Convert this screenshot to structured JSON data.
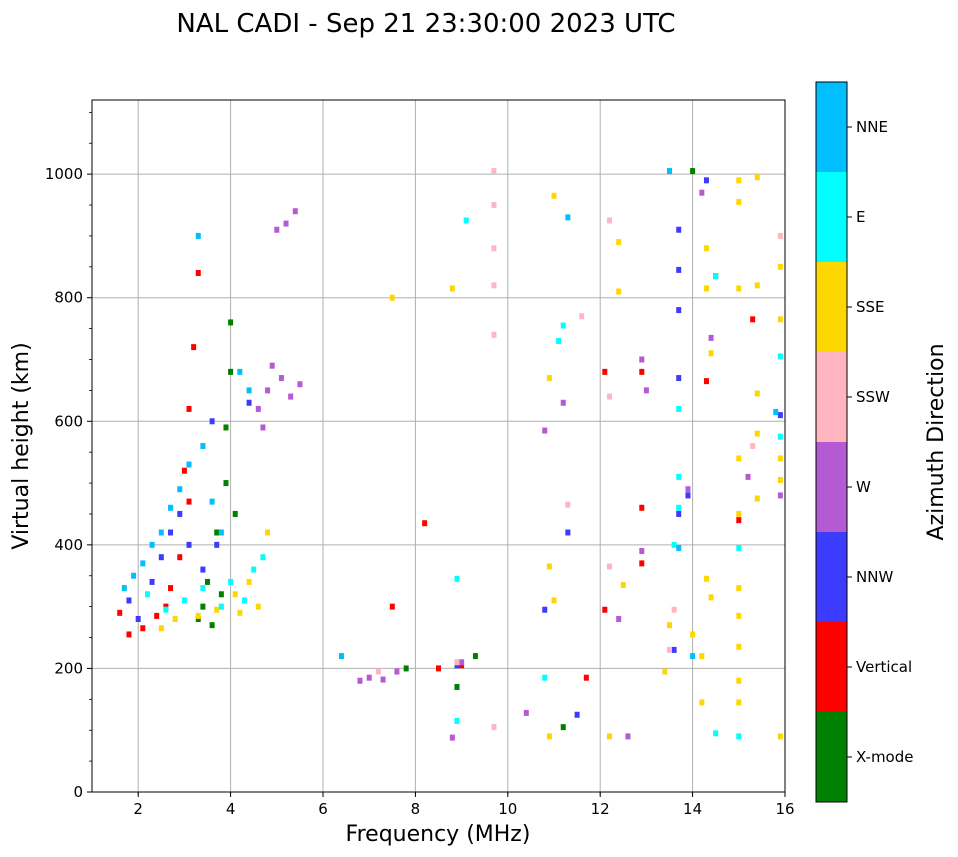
{
  "chart_data": {
    "type": "scatter",
    "title": "NAL CADI - Sep 21 23:30:00 2023 UTC",
    "xlabel": "Frequency (MHz)",
    "ylabel": "Virtual height (km)",
    "xlim": [
      1,
      16
    ],
    "ylim": [
      0,
      1120
    ],
    "xticks": [
      2,
      4,
      6,
      8,
      10,
      12,
      14,
      16
    ],
    "yticks": [
      0,
      200,
      400,
      600,
      800,
      1000
    ],
    "grid": true,
    "colorbar": {
      "title": "Azimuth Direction",
      "categories": [
        {
          "name": "X-mode",
          "color": "#008000"
        },
        {
          "name": "Vertical",
          "color": "#ff0000"
        },
        {
          "name": "NNW",
          "color": "#3c3cff"
        },
        {
          "name": "W",
          "color": "#b45ad2"
        },
        {
          "name": "SSW",
          "color": "#ffb6c1"
        },
        {
          "name": "SSE",
          "color": "#ffd700"
        },
        {
          "name": "E",
          "color": "#00ffff"
        },
        {
          "name": "NNE",
          "color": "#00bfff"
        }
      ]
    },
    "series": [
      {
        "name": "X-mode",
        "points": [
          [
            3.3,
            280
          ],
          [
            3.5,
            340
          ],
          [
            3.7,
            420
          ],
          [
            3.9,
            500
          ],
          [
            4.0,
            680
          ],
          [
            4.0,
            760
          ],
          [
            3.8,
            320
          ],
          [
            3.6,
            270
          ],
          [
            3.4,
            300
          ],
          [
            3.9,
            590
          ],
          [
            4.1,
            450
          ],
          [
            8.9,
            170
          ],
          [
            9.3,
            220
          ],
          [
            7.8,
            200
          ],
          [
            11.2,
            105
          ],
          [
            14.0,
            1005
          ],
          [
            14.5,
            835
          ]
        ]
      },
      {
        "name": "Vertical",
        "points": [
          [
            1.6,
            290
          ],
          [
            1.8,
            255
          ],
          [
            2.1,
            265
          ],
          [
            2.4,
            285
          ],
          [
            2.6,
            300
          ],
          [
            2.9,
            380
          ],
          [
            3.0,
            520
          ],
          [
            3.1,
            620
          ],
          [
            3.2,
            720
          ],
          [
            3.3,
            840
          ],
          [
            3.1,
            470
          ],
          [
            2.7,
            330
          ],
          [
            8.5,
            200
          ],
          [
            9.0,
            205
          ],
          [
            7.5,
            300
          ],
          [
            12.9,
            680
          ],
          [
            12.9,
            460
          ],
          [
            12.9,
            370
          ],
          [
            15.0,
            440
          ],
          [
            15.3,
            765
          ],
          [
            12.1,
            680
          ],
          [
            11.7,
            185
          ],
          [
            8.2,
            435
          ],
          [
            12.1,
            295
          ],
          [
            14.3,
            665
          ]
        ]
      },
      {
        "name": "NNW",
        "points": [
          [
            1.8,
            310
          ],
          [
            2.0,
            280
          ],
          [
            2.3,
            340
          ],
          [
            2.5,
            380
          ],
          [
            2.7,
            420
          ],
          [
            2.9,
            450
          ],
          [
            3.1,
            400
          ],
          [
            3.4,
            360
          ],
          [
            3.7,
            400
          ],
          [
            4.4,
            630
          ],
          [
            3.6,
            600
          ],
          [
            8.9,
            205
          ],
          [
            11.3,
            420
          ],
          [
            11.5,
            125
          ],
          [
            13.7,
            910
          ],
          [
            13.7,
            845
          ],
          [
            13.7,
            780
          ],
          [
            13.7,
            670
          ],
          [
            13.7,
            450
          ],
          [
            13.6,
            230
          ],
          [
            15.9,
            610
          ],
          [
            10.8,
            295
          ],
          [
            13.9,
            480
          ],
          [
            14.3,
            990
          ]
        ]
      },
      {
        "name": "W",
        "points": [
          [
            5.2,
            920
          ],
          [
            5.4,
            940
          ],
          [
            5.0,
            910
          ],
          [
            4.8,
            650
          ],
          [
            5.1,
            670
          ],
          [
            5.3,
            640
          ],
          [
            4.6,
            620
          ],
          [
            4.9,
            690
          ],
          [
            5.5,
            660
          ],
          [
            4.7,
            590
          ],
          [
            7.0,
            185
          ],
          [
            7.3,
            182
          ],
          [
            7.6,
            195
          ],
          [
            6.8,
            180
          ],
          [
            9.0,
            210
          ],
          [
            10.8,
            585
          ],
          [
            11.2,
            630
          ],
          [
            12.9,
            700
          ],
          [
            12.9,
            390
          ],
          [
            12.4,
            280
          ],
          [
            13.9,
            490
          ],
          [
            14.4,
            735
          ],
          [
            15.2,
            510
          ],
          [
            15.9,
            480
          ],
          [
            12.6,
            90
          ],
          [
            10.4,
            128
          ],
          [
            8.8,
            88
          ],
          [
            14.2,
            970
          ],
          [
            13.0,
            650
          ]
        ]
      },
      {
        "name": "SSW",
        "points": [
          [
            9.7,
            1005
          ],
          [
            9.7,
            950
          ],
          [
            9.7,
            880
          ],
          [
            9.7,
            820
          ],
          [
            9.7,
            740
          ],
          [
            9.7,
            105
          ],
          [
            12.2,
            925
          ],
          [
            12.2,
            640
          ],
          [
            12.2,
            365
          ],
          [
            11.3,
            465
          ],
          [
            13.6,
            295
          ],
          [
            15.3,
            560
          ],
          [
            15.9,
            900
          ],
          [
            8.9,
            210
          ],
          [
            7.2,
            195
          ],
          [
            11.6,
            770
          ],
          [
            13.5,
            230
          ]
        ]
      },
      {
        "name": "SSE",
        "points": [
          [
            2.5,
            265
          ],
          [
            2.8,
            280
          ],
          [
            3.3,
            285
          ],
          [
            3.7,
            295
          ],
          [
            4.1,
            320
          ],
          [
            4.4,
            340
          ],
          [
            4.6,
            300
          ],
          [
            4.8,
            420
          ],
          [
            4.2,
            290
          ],
          [
            7.5,
            800
          ],
          [
            8.8,
            815
          ],
          [
            10.9,
            670
          ],
          [
            11.0,
            965
          ],
          [
            11.0,
            310
          ],
          [
            10.9,
            365
          ],
          [
            12.4,
            890
          ],
          [
            12.4,
            810
          ],
          [
            12.5,
            335
          ],
          [
            12.2,
            90
          ],
          [
            13.5,
            270
          ],
          [
            13.4,
            195
          ],
          [
            14.3,
            880
          ],
          [
            14.3,
            815
          ],
          [
            14.4,
            710
          ],
          [
            14.3,
            345
          ],
          [
            14.4,
            315
          ],
          [
            15.0,
            990
          ],
          [
            15.0,
            955
          ],
          [
            15.0,
            815
          ],
          [
            15.0,
            540
          ],
          [
            15.0,
            450
          ],
          [
            15.0,
            330
          ],
          [
            15.0,
            285
          ],
          [
            15.0,
            235
          ],
          [
            15.0,
            180
          ],
          [
            15.0,
            145
          ],
          [
            15.4,
            995
          ],
          [
            15.4,
            820
          ],
          [
            15.4,
            645
          ],
          [
            15.4,
            580
          ],
          [
            15.4,
            475
          ],
          [
            15.9,
            850
          ],
          [
            15.9,
            765
          ],
          [
            15.9,
            540
          ],
          [
            15.9,
            505
          ],
          [
            15.9,
            90
          ],
          [
            14.0,
            255
          ],
          [
            14.2,
            220
          ],
          [
            14.2,
            145
          ],
          [
            10.9,
            90
          ]
        ]
      },
      {
        "name": "E",
        "points": [
          [
            2.2,
            320
          ],
          [
            2.6,
            295
          ],
          [
            3.0,
            310
          ],
          [
            3.4,
            330
          ],
          [
            3.8,
            300
          ],
          [
            4.0,
            340
          ],
          [
            4.5,
            360
          ],
          [
            4.7,
            380
          ],
          [
            4.3,
            310
          ],
          [
            8.9,
            345
          ],
          [
            9.1,
            925
          ],
          [
            11.2,
            755
          ],
          [
            11.1,
            730
          ],
          [
            10.8,
            185
          ],
          [
            13.7,
            510
          ],
          [
            13.7,
            460
          ],
          [
            13.6,
            400
          ],
          [
            13.7,
            620
          ],
          [
            15.0,
            395
          ],
          [
            15.9,
            705
          ],
          [
            15.9,
            575
          ],
          [
            14.5,
            835
          ],
          [
            14.5,
            95
          ],
          [
            15.0,
            90
          ],
          [
            8.9,
            115
          ]
        ]
      },
      {
        "name": "NNE",
        "points": [
          [
            1.7,
            330
          ],
          [
            1.9,
            350
          ],
          [
            2.1,
            370
          ],
          [
            2.3,
            400
          ],
          [
            2.5,
            420
          ],
          [
            2.7,
            460
          ],
          [
            2.9,
            490
          ],
          [
            3.1,
            530
          ],
          [
            3.3,
            900
          ],
          [
            3.4,
            560
          ],
          [
            3.6,
            470
          ],
          [
            3.8,
            420
          ],
          [
            4.2,
            680
          ],
          [
            4.4,
            650
          ],
          [
            6.4,
            220
          ],
          [
            13.7,
            395
          ],
          [
            15.8,
            615
          ],
          [
            13.5,
            1005
          ],
          [
            14.0,
            220
          ],
          [
            11.3,
            930
          ]
        ]
      }
    ]
  }
}
